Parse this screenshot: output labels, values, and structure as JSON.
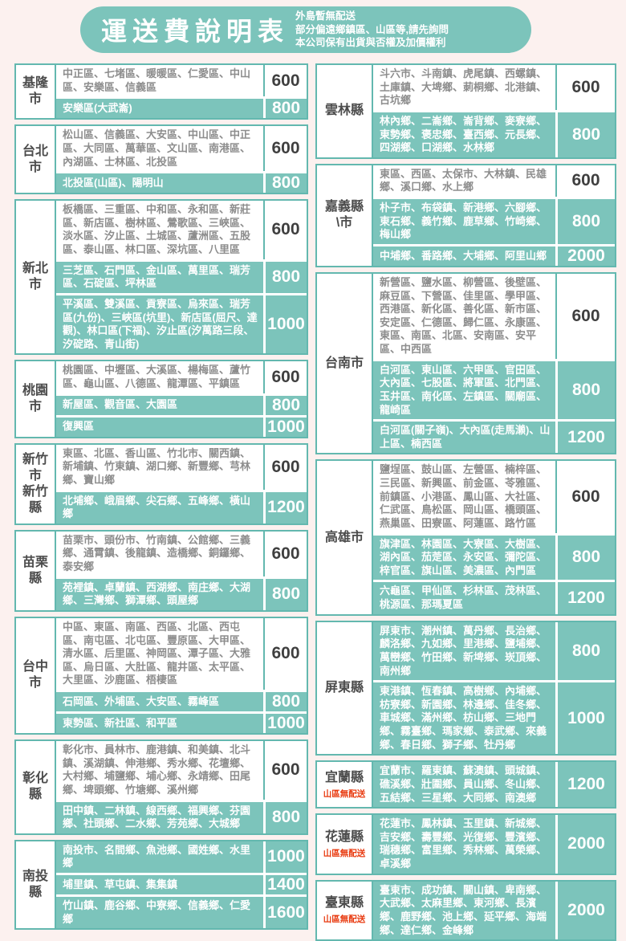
{
  "header": {
    "title": "運送費說明表",
    "notes": [
      "外島暫無配送",
      "部分偏遠鄉鎮區、山區等,請先詢問",
      "本公司保有出貨與否權及加價權利"
    ]
  },
  "colors": {
    "teal": "#7cc4bb",
    "teal_border": "#63b8af",
    "page_background": "#fcf1ef",
    "red_note": "#e8380d",
    "region_gray": "#8d8d8d",
    "fee_dark": "#3f3f3f"
  },
  "tables": {
    "left": [
      {
        "county": "基隆市",
        "rows": [
          {
            "regions": "中正區、七堵區、暖暖區、仁愛區、中山區、安樂區、信義區",
            "fee": "600",
            "highlight": false
          },
          {
            "regions": "安樂區(大武崙)",
            "fee": "800",
            "highlight": true
          }
        ]
      },
      {
        "county": "台北市",
        "rows": [
          {
            "regions": "松山區、信義區、大安區、中山區、中正區、大同區、萬華區、文山區、南港區、內湖區、士林區、北投區",
            "fee": "600",
            "highlight": false
          },
          {
            "regions": "北投區(山區)、陽明山",
            "fee": "800",
            "highlight": true
          }
        ]
      },
      {
        "county": "新北市",
        "rows": [
          {
            "regions": "板橋區、三重區、中和區、永和區、新莊區、新店區、樹林區、鶯歌區、三峽區、淡水區、汐止區、土城區、蘆洲區、五股區、泰山區、林口區、深坑區、八里區",
            "fee": "600",
            "highlight": false
          },
          {
            "regions": "三芝區、石門區、金山區、萬里區、瑞芳區、石碇區、坪林區",
            "fee": "800",
            "highlight": true
          },
          {
            "regions": "平溪區、雙溪區、貢寮區、烏來區、瑞芳區(九份)、三峽區(坑里)、新店區(屈尺、達觀)、林口區(下福)、汐止區(汐萬路三段、汐碇路、青山街)",
            "fee": "1000",
            "highlight": true
          }
        ]
      },
      {
        "county": "桃園市",
        "rows": [
          {
            "regions": "桃園區、中壢區、大溪區、楊梅區、蘆竹區、龜山區、八德區、龍潭區、平鎮區",
            "fee": "600",
            "highlight": false
          },
          {
            "regions": "新屋區、觀音區、大園區",
            "fee": "800",
            "highlight": true
          },
          {
            "regions": "復興區",
            "fee": "1000",
            "highlight": true
          }
        ]
      },
      {
        "county": "新竹市\n新竹縣",
        "rows": [
          {
            "regions": "東區、北區、香山區、竹北市、關西鎮、新埔鎮、竹東鎮、湖口鄉、新豐鄉、芎林鄉、寶山鄉",
            "fee": "600",
            "highlight": false
          },
          {
            "regions": "北埔鄉、峨眉鄉、尖石鄉、五峰鄉、橫山鄉",
            "fee": "1200",
            "highlight": true
          }
        ]
      },
      {
        "county": "苗栗縣",
        "rows": [
          {
            "regions": "苗栗市、頭份市、竹南鎮、公館鄉、三義鄉、通霄鎮、後龍鎮、造橋鄉、銅鑼鄉、泰安鄉",
            "fee": "600",
            "highlight": false
          },
          {
            "regions": "苑裡鎮、卓蘭鎮、西湖鄉、南庄鄉、大湖鄉、三灣鄉、獅潭鄉、頭屋鄉",
            "fee": "800",
            "highlight": true
          }
        ]
      },
      {
        "county": "台中市",
        "rows": [
          {
            "regions": "中區、東區、南區、西區、北區、西屯區、南屯區、北屯區、豐原區、大甲區、清水區、后里區、神岡區、潭子區、大雅區、烏日區、大肚區、龍井區、太平區、大里區、沙鹿區、梧棲區",
            "fee": "600",
            "highlight": false
          },
          {
            "regions": "石岡區、外埔區、大安區、霧峰區",
            "fee": "800",
            "highlight": true
          },
          {
            "regions": "東勢區、新社區、和平區",
            "fee": "1000",
            "highlight": true
          }
        ]
      },
      {
        "county": "彰化縣",
        "rows": [
          {
            "regions": "彰化市、員林市、鹿港鎮、和美鎮、北斗鎮、溪湖鎮、伸港鄉、秀水鄉、花壇鄉、大村鄉、埔鹽鄉、埔心鄉、永靖鄉、田尾鄉、埤頭鄉、竹塘鄉、溪州鄉",
            "fee": "600",
            "highlight": false
          },
          {
            "regions": "田中鎮、二林鎮、線西鄉、福興鄉、芬園鄉、社頭鄉、二水鄉、芳苑鄉、大城鄉",
            "fee": "800",
            "highlight": true
          }
        ]
      },
      {
        "county": "南投縣",
        "rows": [
          {
            "regions": "南投市、名間鄉、魚池鄉、國姓鄉、水里鄉",
            "fee": "1000",
            "highlight": true
          },
          {
            "regions": "埔里鎮、草屯鎮、集集鎮",
            "fee": "1400",
            "highlight": true
          },
          {
            "regions": "竹山鎮、鹿谷鄉、中寮鄉、信義鄉、仁愛鄉",
            "fee": "1600",
            "highlight": true
          }
        ]
      }
    ],
    "right": [
      {
        "county": "雲林縣",
        "rows": [
          {
            "regions": "斗六市、斗南鎮、虎尾鎮、西螺鎮、土庫鎮、大埤鄉、莿桐鄉、北港鎮、古坑鄉",
            "fee": "600",
            "highlight": false
          },
          {
            "regions": "林內鄉、二崙鄉、崙背鄉、麥寮鄉、東勢鄉、褒忠鄉、臺西鄉、元長鄉、四湖鄉、口湖鄉、水林鄉",
            "fee": "800",
            "highlight": true
          }
        ]
      },
      {
        "county": "嘉義縣\\市",
        "rows": [
          {
            "regions": "東區、西區、太保市、大林鎮、民雄鄉、溪口鄉、水上鄉",
            "fee": "600",
            "highlight": false
          },
          {
            "regions": "朴子市、布袋鎮、新港鄉、六腳鄉、東石鄉、義竹鄉、鹿草鄉、竹崎鄉、梅山鄉",
            "fee": "800",
            "highlight": true
          },
          {
            "regions": "中埔鄉、番路鄉、大埔鄉、阿里山鄉",
            "fee": "2000",
            "highlight": true
          }
        ]
      },
      {
        "county": "台南市",
        "rows": [
          {
            "regions": "新營區、鹽水區、柳營區、後壁區、麻豆區、下營區、佳里區、學甲區、西港區、新化區、善化區、新市區、安定區、仁德區、歸仁區、永康區、東區、南區、北區、安南區、安平區、中西區",
            "fee": "600",
            "highlight": false
          },
          {
            "regions": "白河區、東山區、六甲區、官田區、大內區、七股區、將軍區、北門區、玉井區、南化區、左鎮區、關廟區、龍崎區",
            "fee": "800",
            "highlight": true
          },
          {
            "regions": "白河區(關子嶺)、大內區(走馬瀨)、山上區、楠西區",
            "fee": "1200",
            "highlight": true
          }
        ]
      },
      {
        "county": "高雄市",
        "rows": [
          {
            "regions": "鹽埕區、鼓山區、左營區、楠梓區、三民區、新興區、前金區、苓雅區、前鎮區、小港區、鳳山區、大社區、仁武區、鳥松區、岡山區、橋頭區、燕巢區、田寮區、阿蓮區、路竹區",
            "fee": "600",
            "highlight": false
          },
          {
            "regions": "旗津區、林園區、大寮區、大樹區、湖內區、茄萣區、永安區、彌陀區、梓官區、旗山區、美濃區、內門區",
            "fee": "800",
            "highlight": true
          },
          {
            "regions": "六龜區、甲仙區、杉林區、茂林區、桃源區、那瑪夏區",
            "fee": "1200",
            "highlight": true
          }
        ]
      },
      {
        "county": "屏東縣",
        "rows": [
          {
            "regions": "屏東市、潮州鎮、萬丹鄉、長治鄉、麟洛鄉、九如鄉、里港鄉、鹽埔鄉、萬巒鄉、竹田鄉、新埤鄉、崁頂鄉、南州鄉",
            "fee": "800",
            "highlight": true
          },
          {
            "regions": "東港鎮、恆春鎮、高樹鄉、內埔鄉、枋寮鄉、新園鄉、林邊鄉、佳冬鄉、車城鄉、滿州鄉、枋山鄉、三地門鄉、霧臺鄉、瑪家鄉、泰武鄉、來義鄉、春日鄉、獅子鄉、牡丹鄉",
            "fee": "1000",
            "highlight": true
          }
        ]
      },
      {
        "county": "宜蘭縣",
        "note": "山區無配送",
        "rows": [
          {
            "regions": "宜蘭市、羅東鎮、蘇澳鎮、頭城鎮、礁溪鄉、壯圍鄉、員山鄉、冬山鄉、五結鄉、三星鄉、大同鄉、南澳鄉",
            "fee": "1200",
            "highlight": true
          }
        ]
      },
      {
        "county": "花蓮縣",
        "note": "山區無配送",
        "rows": [
          {
            "regions": "花蓮市、鳳林鎮、玉里鎮、新城鄉、吉安鄉、壽豐鄉、光復鄉、豐濱鄉、瑞穗鄉、富里鄉、秀林鄉、萬榮鄉、卓溪鄉",
            "fee": "2000",
            "highlight": true
          }
        ]
      },
      {
        "county": "臺東縣",
        "note": "山區無配送",
        "rows": [
          {
            "regions": "臺東市、成功鎮、關山鎮、卑南鄉、大武鄉、太麻里鄉、東河鄉、長濱鄉、鹿野鄉、池上鄉、延平鄉、海端鄉、達仁鄉、金峰鄉",
            "fee": "2000",
            "highlight": true
          }
        ]
      }
    ]
  }
}
